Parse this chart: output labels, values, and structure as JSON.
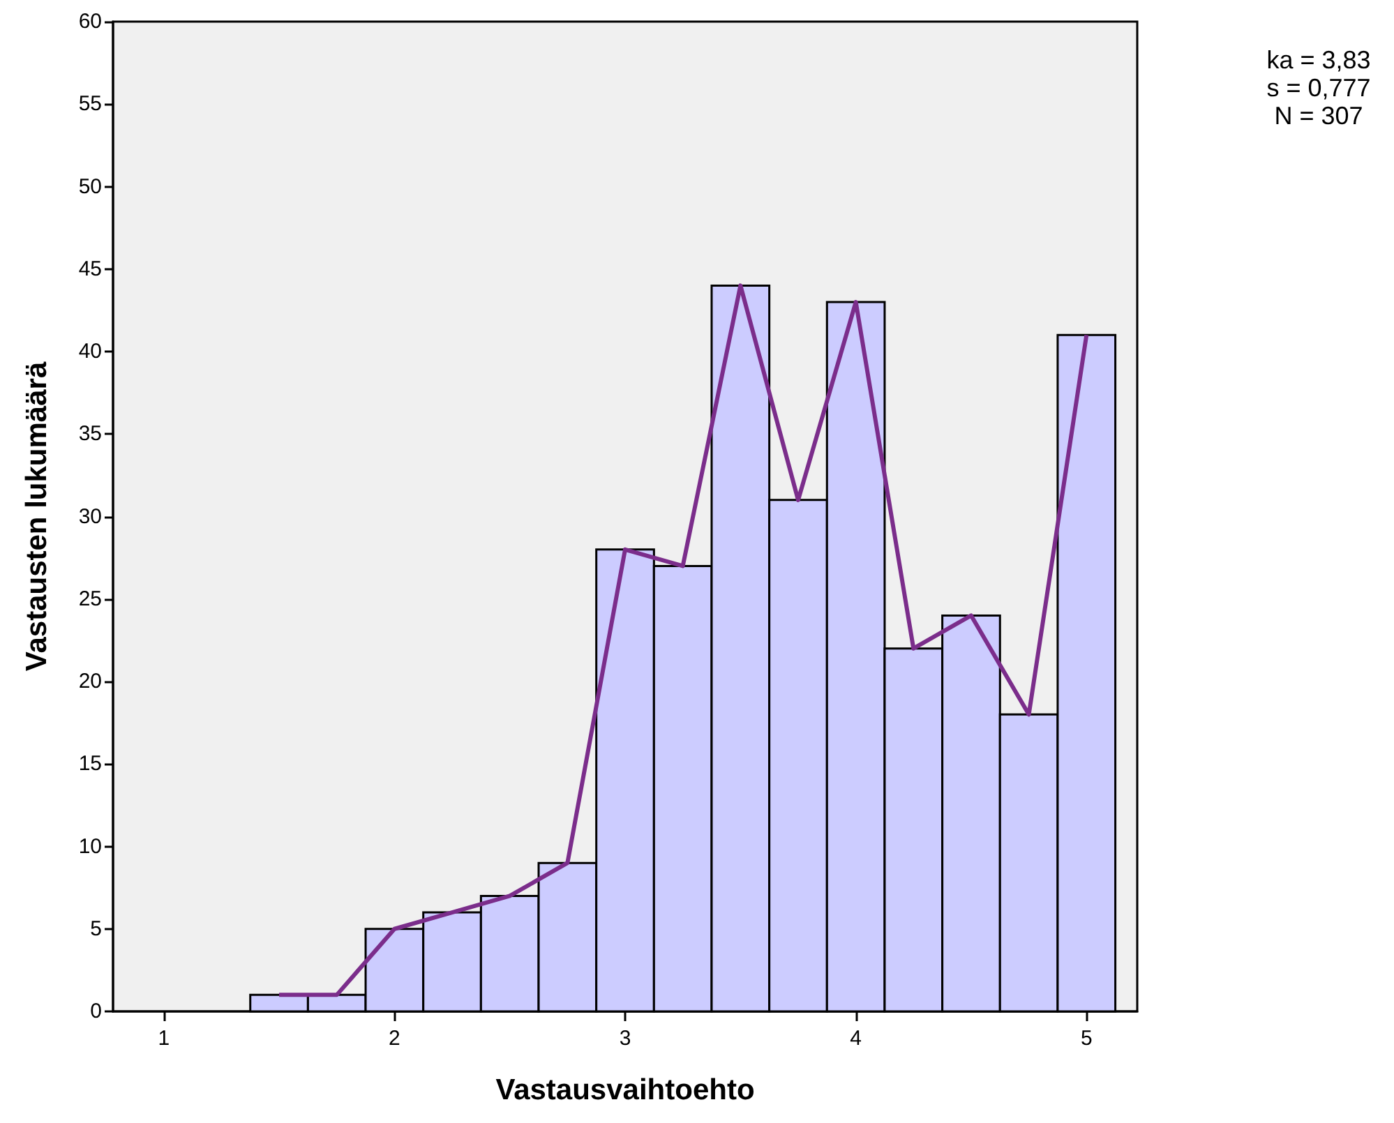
{
  "chart_data": {
    "type": "histogram",
    "xlabel": "Vastausvaihtoehto",
    "ylabel": "Vastausten lukumäärä",
    "bins": [
      1.375,
      1.625,
      1.875,
      2.125,
      2.375,
      2.625,
      2.875,
      3.125,
      3.375,
      3.625,
      3.875,
      4.125,
      4.375,
      4.625,
      4.875,
      5.125
    ],
    "values": [
      1,
      1,
      5,
      6,
      7,
      9,
      28,
      27,
      44,
      31,
      43,
      22,
      24,
      18,
      41
    ],
    "color": "#ccccff",
    "series": [
      {
        "type": "line",
        "color": "#7b2d8b",
        "x": [
          1.5,
          1.75,
          2,
          2.25,
          2.5,
          2.75,
          3,
          3.25,
          3.5,
          3.75,
          4,
          4.25,
          4.5,
          4.75,
          5
        ],
        "values": [
          1,
          1,
          5,
          6,
          7,
          9,
          28,
          27,
          44,
          31,
          43,
          22,
          24,
          18,
          41
        ]
      }
    ],
    "xlim": [
      0.78,
      5.22
    ],
    "xticks": [
      1,
      2,
      3,
      4,
      5
    ],
    "ylim": [
      0,
      60
    ],
    "yticks": [
      0,
      5,
      10,
      15,
      20,
      25,
      30,
      35,
      40,
      45,
      50,
      55,
      60
    ],
    "marker": "none",
    "annotations": [
      "ka = 3,83",
      "s = 0,777",
      "N = 307"
    ]
  }
}
